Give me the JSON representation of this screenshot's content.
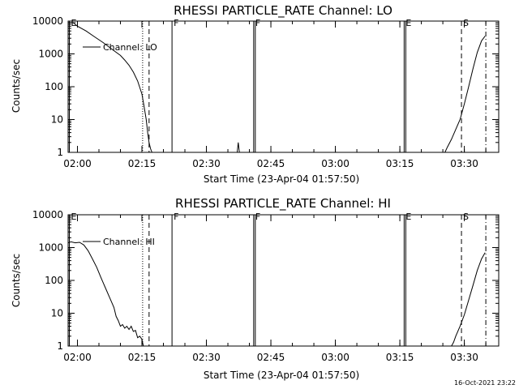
{
  "chart_data": [
    {
      "type": "line",
      "title": "RHESSI PARTICLE_RATE Channel: LO",
      "xlabel": "Start Time (23-Apr-04 01:57:50)",
      "ylabel": "Counts/sec",
      "yscale": "log",
      "ylim": [
        1,
        10000
      ],
      "ytick_labels": [
        "1",
        "10",
        "100",
        "1000",
        "10000"
      ],
      "xlim": [
        "01:57:50",
        "03:38:00"
      ],
      "xtick_labels": [
        "02:00",
        "02:15",
        "02:30",
        "02:45",
        "03:00",
        "03:15",
        "03:30"
      ],
      "legend": {
        "label": "Channel: LO",
        "placement": "top-left"
      },
      "markers": [
        {
          "label": "E",
          "time": "01:57:50",
          "style": "solid"
        },
        {
          "label": "",
          "time": "02:15:10",
          "style": "dotted"
        },
        {
          "label": "",
          "time": "02:16:40",
          "style": "dashed"
        },
        {
          "label": "F",
          "time": "02:22:00",
          "style": "solid"
        },
        {
          "label": "F",
          "time": "02:41:00",
          "style": "solid"
        },
        {
          "label": "E",
          "time": "03:16:00",
          "style": "solid"
        },
        {
          "label": "S",
          "time": "03:29:20",
          "style": "dashed"
        },
        {
          "label": "",
          "time": "03:35:00",
          "style": "dashdot"
        }
      ],
      "series": [
        {
          "name": "Channel: LO",
          "segments": [
            {
              "x": [
                "01:57:50",
                "01:59:00",
                "02:00:00",
                "02:02:00",
                "02:04:00",
                "02:06:00",
                "02:08:00",
                "02:10:00",
                "02:11:00",
                "02:12:00",
                "02:13:00",
                "02:14:00",
                "02:15:00",
                "02:15:30",
                "02:16:00",
                "02:16:20",
                "02:16:40",
                "02:17:00",
                "02:17:20"
              ],
              "y": [
                9000,
                9000,
                7000,
                5000,
                3300,
                2200,
                1400,
                900,
                650,
                450,
                280,
                150,
                60,
                25,
                10,
                4,
                2,
                1.3,
                1
              ]
            },
            {
              "x": [
                "02:37:10",
                "02:37:25",
                "02:37:40"
              ],
              "y": [
                1,
                2,
                1
              ]
            },
            {
              "x": [
                "03:25:30",
                "03:26:00",
                "03:27:00",
                "03:28:00",
                "03:29:00",
                "03:30:00",
                "03:31:00",
                "03:32:00",
                "03:33:00",
                "03:34:00",
                "03:34:50"
              ],
              "y": [
                1,
                1.4,
                2.5,
                5,
                10,
                30,
                100,
                350,
                1100,
                2500,
                3500
              ]
            }
          ]
        }
      ]
    },
    {
      "type": "line",
      "title": "RHESSI PARTICLE_RATE Channel: HI",
      "xlabel": "Start Time (23-Apr-04 01:57:50)",
      "ylabel": "Counts/sec",
      "yscale": "log",
      "ylim": [
        1,
        10000
      ],
      "ytick_labels": [
        "1",
        "10",
        "100",
        "1000",
        "10000"
      ],
      "xlim": [
        "01:57:50",
        "03:38:00"
      ],
      "xtick_labels": [
        "02:00",
        "02:15",
        "02:30",
        "02:45",
        "03:00",
        "03:15",
        "03:30"
      ],
      "legend": {
        "label": "Channel: HI",
        "placement": "top-left"
      },
      "markers": [
        {
          "label": "E",
          "time": "01:57:50",
          "style": "solid"
        },
        {
          "label": "",
          "time": "02:15:10",
          "style": "dotted"
        },
        {
          "label": "",
          "time": "02:16:40",
          "style": "dashed"
        },
        {
          "label": "F",
          "time": "02:22:00",
          "style": "solid"
        },
        {
          "label": "F",
          "time": "02:41:00",
          "style": "solid"
        },
        {
          "label": "E",
          "time": "03:16:00",
          "style": "solid"
        },
        {
          "label": "S",
          "time": "03:29:20",
          "style": "dashed"
        },
        {
          "label": "",
          "time": "03:35:00",
          "style": "dashdot"
        }
      ],
      "series": [
        {
          "name": "Channel: HI",
          "segments": [
            {
              "x": [
                "01:57:50",
                "01:58:30",
                "01:59:30",
                "02:00:30",
                "02:01:30",
                "02:02:30",
                "02:03:30",
                "02:04:30",
                "02:05:30",
                "02:06:30",
                "02:07:30",
                "02:08:30",
                "02:09:00",
                "02:09:30",
                "02:10:00",
                "02:10:30",
                "02:11:00",
                "02:11:30",
                "02:12:00",
                "02:12:30",
                "02:13:00",
                "02:13:30",
                "02:14:00",
                "02:14:30",
                "02:15:00",
                "02:15:20"
              ],
              "y": [
                1400,
                1500,
                1400,
                1450,
                1200,
                800,
                450,
                250,
                120,
                60,
                30,
                15,
                8,
                6,
                4,
                4.5,
                3.5,
                4,
                3.2,
                4,
                2.8,
                3,
                1.8,
                2,
                1.6,
                1
              ]
            },
            {
              "x": [
                "03:27:00",
                "03:27:30",
                "03:28:00",
                "03:29:00",
                "03:30:00",
                "03:31:00",
                "03:32:00",
                "03:33:00",
                "03:34:00",
                "03:34:50"
              ],
              "y": [
                1,
                1.3,
                2,
                4,
                9,
                25,
                70,
                200,
                450,
                700
              ]
            }
          ]
        }
      ]
    }
  ],
  "timestamp": "16-Oct-2021 23:22"
}
